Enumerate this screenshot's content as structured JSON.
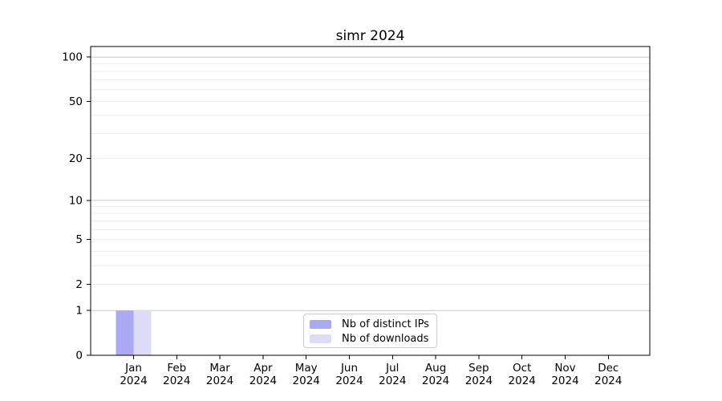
{
  "chart_data": {
    "type": "bar",
    "title": "simr 2024",
    "categories": [
      "Jan 2024",
      "Feb 2024",
      "Mar 2024",
      "Apr 2024",
      "May 2024",
      "Jun 2024",
      "Jul 2024",
      "Aug 2024",
      "Sep 2024",
      "Oct 2024",
      "Nov 2024",
      "Dec 2024"
    ],
    "series": [
      {
        "name": "Nb of distinct IPs",
        "color": "#a9a9f4",
        "values": [
          1,
          0,
          0,
          0,
          0,
          0,
          0,
          0,
          0,
          0,
          0,
          0
        ]
      },
      {
        "name": "Nb of downloads",
        "color": "#dcdcf8",
        "values": [
          1,
          0,
          0,
          0,
          0,
          0,
          0,
          0,
          0,
          0,
          0,
          0
        ]
      }
    ],
    "xlabel": "",
    "ylabel": "",
    "y_scale": "log1p",
    "ylim": [
      0,
      118
    ],
    "y_ticks": [
      100,
      50,
      20,
      10,
      5,
      2,
      1,
      0
    ],
    "y_major_gridlines": [
      1,
      10,
      100
    ],
    "y_minor_gridlines": [
      2,
      3,
      4,
      5,
      6,
      7,
      8,
      9,
      20,
      30,
      40,
      50,
      60,
      70,
      80,
      90
    ],
    "grid": "horizontal",
    "legend_position": "lower-center-inside"
  },
  "colors": {
    "bar_distinct_ips": "#a9a9f4",
    "bar_downloads": "#dcdcf8",
    "grid_major": "#c8c8c8",
    "grid_minor": "#ececec",
    "spine": "#000000",
    "tick_text": "#000000",
    "legend_border": "#cccccc",
    "background": "#ffffff"
  }
}
